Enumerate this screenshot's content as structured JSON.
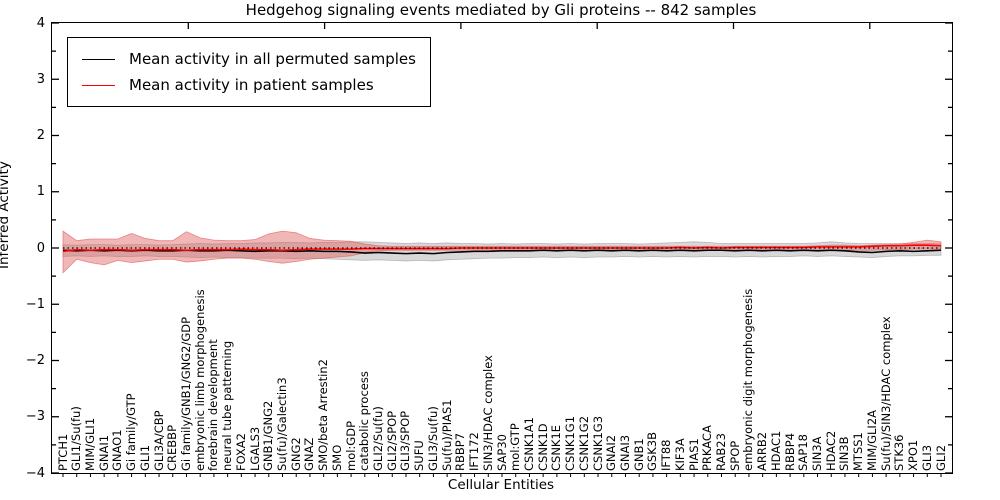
{
  "title": "Hedgehog signaling events mediated by Gli proteins -- 842 samples",
  "x_axis_label": "Cellular Entities",
  "y_axis_label": "Inferred Activity",
  "y_tick_labels": [
    "4",
    "3",
    "2",
    "1",
    "0",
    "−1",
    "−2",
    "−3",
    "−4"
  ],
  "legend": [
    {
      "label": "Mean activity in all permuted samples",
      "color": "#000000"
    },
    {
      "label": "Mean activity in patient samples",
      "color": "#ff0000"
    }
  ],
  "colors": {
    "permuted_line": "#000000",
    "patient_line": "#ff0000",
    "permuted_band": "#999999",
    "patient_band": "#e06060",
    "zero_line": "#000000",
    "background": "#ffffff"
  },
  "chart_data": {
    "type": "line",
    "title": "Hedgehog signaling events mediated by Gli proteins -- 842 samples",
    "xlabel": "Cellular Entities",
    "ylabel": "Inferred Activity",
    "ylim": [
      -4,
      4
    ],
    "yticks": [
      4,
      3,
      2,
      1,
      0,
      -1,
      -2,
      -3,
      -4
    ],
    "grid": false,
    "legend_position": "upper left",
    "zero_reference_line": 0,
    "categories": [
      "PTCH1",
      "GLI1/Su(fu)",
      "MIM/GLI1",
      "GNAI1",
      "GNAO1",
      "Gi family/GTP",
      "GLI1",
      "GLI3A/CBP",
      "CREBBP",
      "Gi family/GNB1/GNG2/GDP",
      "embryonic limb morphogenesis",
      "forebrain development",
      "neural tube patterning",
      "FOXA2",
      "LGALS3",
      "GNB1/GNG2",
      "Su(fu)/Galectin3",
      "GNG2",
      "GNAZ",
      "SMO/beta Arrestin2",
      "SMO",
      "mol:GDP",
      "catabolic process",
      "GLI2/Su(fu)",
      "GLI2/SPOP",
      "GLI3/SPOP",
      "SUFU",
      "GLI3/Su(fu)",
      "Su(fu)/PIAS1",
      "RBBP7",
      "IFT172",
      "SIN3/HDAC complex",
      "SAP30",
      "mol:GTP",
      "CSNK1A1",
      "CSNK1D",
      "CSNK1E",
      "CSNK1G1",
      "CSNK1G2",
      "CSNK1G3",
      "GNAI2",
      "GNAI3",
      "GNB1",
      "GSK3B",
      "IFT88",
      "KIF3A",
      "PIAS1",
      "PRKACA",
      "RAB23",
      "SPOP",
      "embryonic digit morphogenesis",
      "ARRB2",
      "HDAC1",
      "RBBP4",
      "SAP18",
      "SIN3A",
      "HDAC2",
      "SIN3B",
      "MTSS1",
      "MIM/GLI2A",
      "Su(fu)/SIN3/HDAC complex",
      "STK36",
      "XPO1",
      "GLI3",
      "GLI2"
    ],
    "series": [
      {
        "name": "Mean activity in all permuted samples",
        "color": "#000000",
        "values": [
          -0.04,
          -0.05,
          -0.04,
          -0.05,
          -0.04,
          -0.05,
          -0.04,
          -0.05,
          -0.05,
          -0.04,
          -0.05,
          -0.05,
          -0.04,
          -0.05,
          -0.06,
          -0.05,
          -0.05,
          -0.06,
          -0.05,
          -0.06,
          -0.06,
          -0.07,
          -0.09,
          -0.08,
          -0.09,
          -0.1,
          -0.09,
          -0.1,
          -0.08,
          -0.07,
          -0.06,
          -0.06,
          -0.05,
          -0.05,
          -0.05,
          -0.04,
          -0.05,
          -0.04,
          -0.05,
          -0.04,
          -0.05,
          -0.04,
          -0.05,
          -0.04,
          -0.05,
          -0.04,
          -0.05,
          -0.04,
          -0.04,
          -0.05,
          -0.04,
          -0.05,
          -0.04,
          -0.05,
          -0.04,
          -0.05,
          -0.04,
          -0.05,
          -0.07,
          -0.08,
          -0.06,
          -0.05,
          -0.06,
          -0.05,
          -0.04
        ]
      },
      {
        "name": "Mean activity in patient samples",
        "color": "#ff0000",
        "values": [
          -0.06,
          -0.03,
          -0.04,
          -0.03,
          -0.03,
          -0.04,
          -0.03,
          -0.03,
          -0.03,
          -0.04,
          -0.03,
          -0.03,
          -0.03,
          -0.02,
          -0.03,
          -0.03,
          -0.04,
          -0.03,
          -0.02,
          -0.02,
          -0.02,
          -0.02,
          -0.01,
          -0.01,
          -0.01,
          -0.01,
          -0.01,
          -0.01,
          -0.01,
          0.0,
          0.0,
          0.0,
          0.0,
          0.0,
          0.0,
          0.0,
          0.0,
          0.0,
          0.0,
          0.0,
          0.0,
          0.0,
          0.0,
          0.0,
          0.0,
          0.01,
          0.0,
          0.01,
          0.0,
          0.01,
          0.01,
          0.01,
          0.01,
          0.01,
          0.01,
          0.02,
          0.02,
          0.02,
          0.02,
          0.03,
          0.04,
          0.04,
          0.05,
          0.05,
          0.04
        ]
      }
    ],
    "bands": [
      {
        "name": "permuted samples range",
        "color": "#999999",
        "opacity": 0.38,
        "upper": [
          0.06,
          0.05,
          0.06,
          0.06,
          0.05,
          0.06,
          0.06,
          0.05,
          0.06,
          0.07,
          0.08,
          0.07,
          0.08,
          0.08,
          0.09,
          0.09,
          0.1,
          0.1,
          0.09,
          0.1,
          0.1,
          0.11,
          0.11,
          0.1,
          0.09,
          0.08,
          0.09,
          0.08,
          0.09,
          0.08,
          0.08,
          0.07,
          0.08,
          0.07,
          0.08,
          0.08,
          0.07,
          0.08,
          0.07,
          0.08,
          0.08,
          0.08,
          0.07,
          0.08,
          0.09,
          0.1,
          0.11,
          0.1,
          0.08,
          0.08,
          0.08,
          0.08,
          0.08,
          0.08,
          0.08,
          0.09,
          0.11,
          0.09,
          0.08,
          0.08,
          0.08,
          0.08,
          0.08,
          0.08,
          0.08
        ],
        "lower": [
          -0.15,
          -0.14,
          -0.15,
          -0.14,
          -0.15,
          -0.15,
          -0.14,
          -0.15,
          -0.15,
          -0.16,
          -0.17,
          -0.16,
          -0.17,
          -0.17,
          -0.18,
          -0.18,
          -0.18,
          -0.19,
          -0.18,
          -0.19,
          -0.2,
          -0.21,
          -0.22,
          -0.21,
          -0.22,
          -0.23,
          -0.22,
          -0.23,
          -0.21,
          -0.2,
          -0.19,
          -0.18,
          -0.18,
          -0.17,
          -0.17,
          -0.16,
          -0.17,
          -0.16,
          -0.17,
          -0.16,
          -0.16,
          -0.15,
          -0.16,
          -0.15,
          -0.16,
          -0.15,
          -0.16,
          -0.15,
          -0.15,
          -0.16,
          -0.15,
          -0.16,
          -0.15,
          -0.15,
          -0.14,
          -0.15,
          -0.14,
          -0.15,
          -0.16,
          -0.17,
          -0.15,
          -0.14,
          -0.14,
          -0.13,
          -0.13
        ]
      },
      {
        "name": "patient samples range",
        "color": "#e06060",
        "opacity": 0.45,
        "upper": [
          0.3,
          0.13,
          0.16,
          0.16,
          0.16,
          0.26,
          0.17,
          0.13,
          0.13,
          0.29,
          0.18,
          0.14,
          0.13,
          0.13,
          0.15,
          0.25,
          0.3,
          0.27,
          0.17,
          0.14,
          0.13,
          0.12,
          0.07,
          0.04,
          0.03,
          0.03,
          0.03,
          0.03,
          0.03,
          0.03,
          0.03,
          0.03,
          0.03,
          0.03,
          0.03,
          0.03,
          0.03,
          0.03,
          0.03,
          0.03,
          0.03,
          0.03,
          0.03,
          0.03,
          0.03,
          0.03,
          0.03,
          0.03,
          0.03,
          0.03,
          0.03,
          0.03,
          0.03,
          0.03,
          0.03,
          0.04,
          0.05,
          0.05,
          0.04,
          0.05,
          0.06,
          0.07,
          0.1,
          0.14,
          0.11
        ],
        "lower": [
          -0.44,
          -0.2,
          -0.26,
          -0.3,
          -0.22,
          -0.26,
          -0.23,
          -0.2,
          -0.2,
          -0.25,
          -0.23,
          -0.2,
          -0.18,
          -0.18,
          -0.2,
          -0.24,
          -0.27,
          -0.24,
          -0.2,
          -0.18,
          -0.16,
          -0.14,
          -0.08,
          -0.05,
          -0.04,
          -0.04,
          -0.04,
          -0.04,
          -0.04,
          -0.04,
          -0.04,
          -0.04,
          -0.04,
          -0.04,
          -0.04,
          -0.04,
          -0.04,
          -0.04,
          -0.04,
          -0.04,
          -0.04,
          -0.04,
          -0.04,
          -0.04,
          -0.04,
          -0.04,
          -0.04,
          -0.04,
          -0.04,
          -0.04,
          -0.04,
          -0.04,
          -0.04,
          -0.04,
          -0.04,
          -0.04,
          -0.04,
          -0.04,
          -0.04,
          -0.04,
          -0.03,
          -0.03,
          -0.02,
          -0.02,
          -0.02
        ]
      }
    ]
  }
}
